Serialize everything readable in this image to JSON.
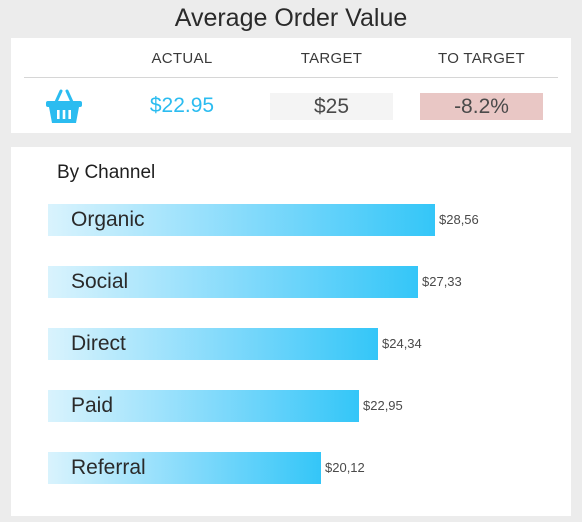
{
  "page_title": "Average Order Value",
  "kpi": {
    "headers": {
      "actual": "ACTUAL",
      "target": "TARGET",
      "to_target": "TO TARGET"
    },
    "icon": "shopping-basket-icon",
    "actual": "$22.95",
    "target": "$25",
    "to_target": "-8.2%"
  },
  "colors": {
    "accent": "#2bbcf0",
    "to_target_bg": "#e9c7c5",
    "target_bg": "#f4f4f4"
  },
  "channel": {
    "title": "By Channel"
  },
  "chart_data": {
    "type": "bar",
    "orientation": "horizontal",
    "title": "By Channel",
    "categories": [
      "Organic",
      "Social",
      "Direct",
      "Paid",
      "Referral"
    ],
    "values": [
      28.56,
      27.33,
      24.34,
      22.95,
      20.12
    ],
    "value_labels": [
      "$28,56",
      "$27,33",
      "$24,34",
      "$22,95",
      "$20,12"
    ],
    "xlim": [
      0,
      28.56
    ],
    "grid": false,
    "legend": "none"
  }
}
